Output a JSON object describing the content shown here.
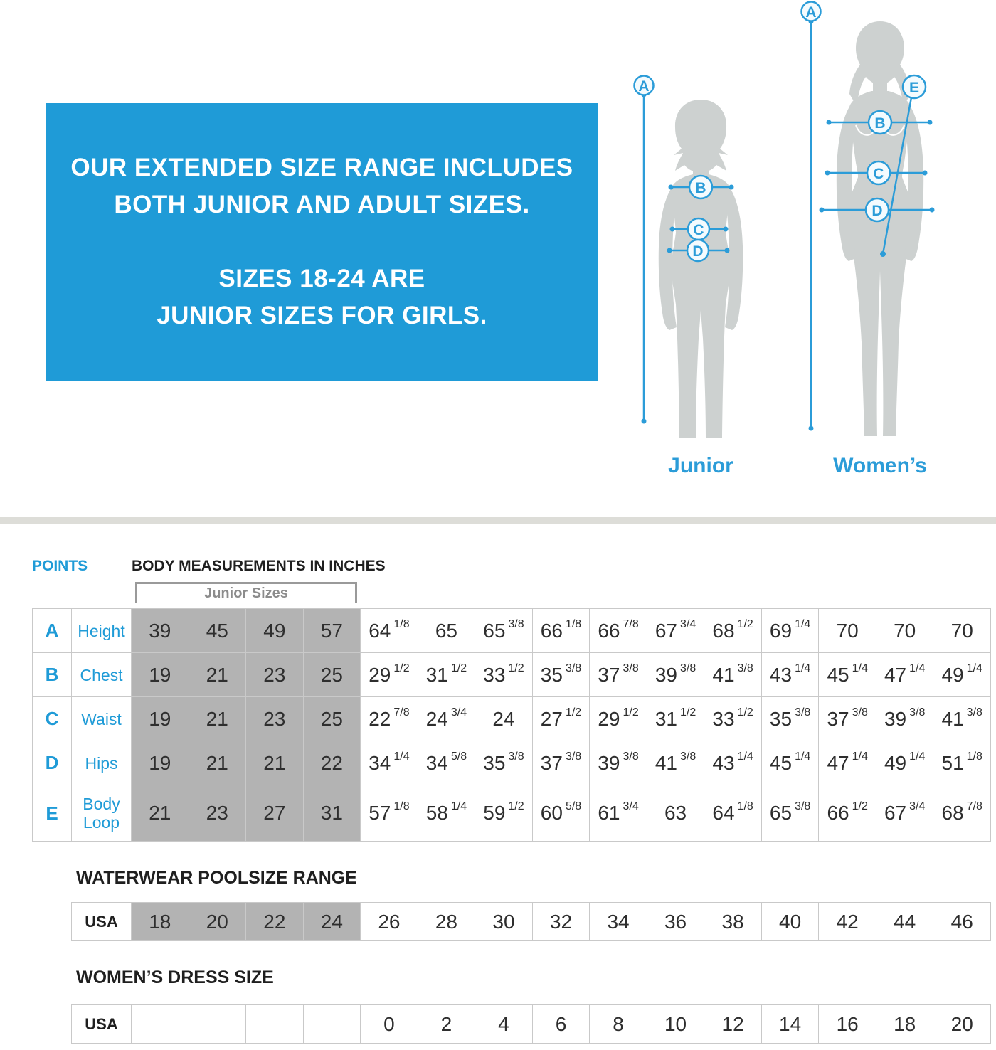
{
  "colors": {
    "accent_blue": "#1F9BD7",
    "figure_line_blue": "#2B9CD8",
    "junior_cell_gray": "#B3B3B3",
    "silhouette_gray": "#CDD1D0"
  },
  "banner": {
    "line1": "OUR EXTENDED SIZE RANGE INCLUDES",
    "line2": "BOTH JUNIOR AND ADULT SIZES.",
    "line3": "SIZES 18-24 ARE",
    "line4": "JUNIOR SIZES FOR GIRLS."
  },
  "figures": {
    "points": [
      "A",
      "B",
      "C",
      "D",
      "E"
    ],
    "junior_label": "Junior",
    "womens_label": "Women’s"
  },
  "measurements": {
    "points_label": "POINTS",
    "title": "BODY MEASUREMENTS IN INCHES",
    "junior_bracket_label": "Junior Sizes",
    "junior_col_count": 4,
    "rows": [
      {
        "point": "A",
        "label": "Height",
        "values": [
          "39",
          "45",
          "49",
          "57",
          "64 1/8",
          "65",
          "65 3/8",
          "66 1/8",
          "66 7/8",
          "67 3/4",
          "68 1/2",
          "69 1/4",
          "70",
          "70",
          "70"
        ]
      },
      {
        "point": "B",
        "label": "Chest",
        "values": [
          "19",
          "21",
          "23",
          "25",
          "29 1/2",
          "31 1/2",
          "33 1/2",
          "35 3/8",
          "37 3/8",
          "39 3/8",
          "41 3/8",
          "43 1/4",
          "45 1/4",
          "47 1/4",
          "49 1/4"
        ]
      },
      {
        "point": "C",
        "label": "Waist",
        "values": [
          "19",
          "21",
          "23",
          "25",
          "22 7/8",
          "24 3/4",
          "24",
          "27 1/2",
          "29 1/2",
          "31 1/2",
          "33 1/2",
          "35 3/8",
          "37 3/8",
          "39 3/8",
          "41 3/8"
        ]
      },
      {
        "point": "D",
        "label": "Hips",
        "values": [
          "19",
          "21",
          "21",
          "22",
          "34 1/4",
          "34 5/8",
          "35 3/8",
          "37 3/8",
          "39 3/8",
          "41 3/8",
          "43 1/4",
          "45 1/4",
          "47 1/4",
          "49 1/4",
          "51 1/8"
        ]
      },
      {
        "point": "E",
        "label": "Body Loop",
        "values": [
          "21",
          "23",
          "27",
          "31",
          "57 1/8",
          "58 1/4",
          "59 1/2",
          "60 5/8",
          "61 3/4",
          "63",
          "64 1/8",
          "65 3/8",
          "66 1/2",
          "67 3/4",
          "68 7/8"
        ]
      }
    ]
  },
  "poolsize": {
    "title": "WATERWEAR POOLSIZE RANGE",
    "row_label": "USA",
    "junior_col_count": 4,
    "values": [
      "18",
      "20",
      "22",
      "24",
      "26",
      "28",
      "30",
      "32",
      "34",
      "36",
      "38",
      "40",
      "42",
      "44",
      "46"
    ]
  },
  "dress": {
    "title": "WOMEN’S DRESS SIZE",
    "row_label": "USA",
    "values": [
      "",
      "",
      "",
      "",
      "0",
      "2",
      "4",
      "6",
      "8",
      "10",
      "12",
      "14",
      "16",
      "18",
      "20"
    ]
  }
}
